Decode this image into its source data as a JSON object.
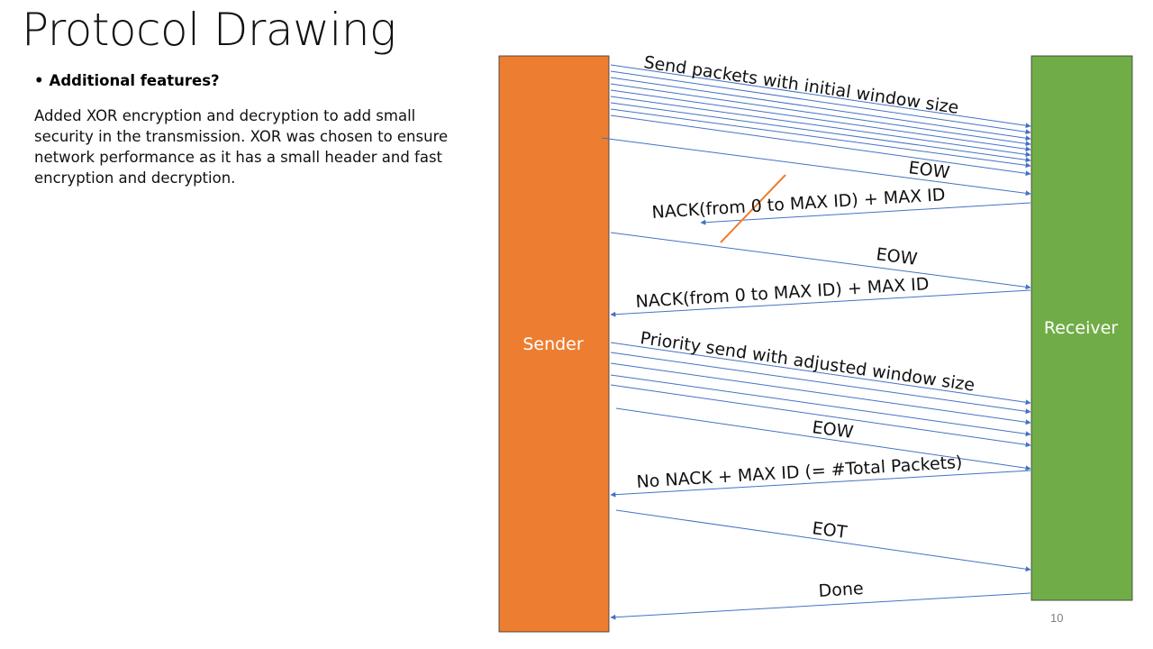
{
  "slide": {
    "title": "Protocol Drawing",
    "bullet": "Additional features?",
    "body": "Added XOR encryption and decryption to add small security in the transmission. XOR was chosen to ensure network performance as it has a small header and fast encryption and decryption.",
    "page_number": "10"
  },
  "diagram": {
    "sender": {
      "label": "Sender",
      "color": "#ED7D31"
    },
    "receiver": {
      "label": "Receiver",
      "color": "#70AD47"
    },
    "arrow_color": "#4472C4",
    "strike_color": "#ED7D31",
    "messages": [
      "Send packets with initial window size",
      "EOW",
      "NACK(from 0 to MAX ID) + MAX ID",
      "EOW",
      "NACK(from 0 to MAX ID) + MAX ID",
      "Priority send with adjusted window size",
      "EOW",
      "No NACK + MAX ID (= #Total Packets)",
      "EOT",
      "Done"
    ]
  }
}
